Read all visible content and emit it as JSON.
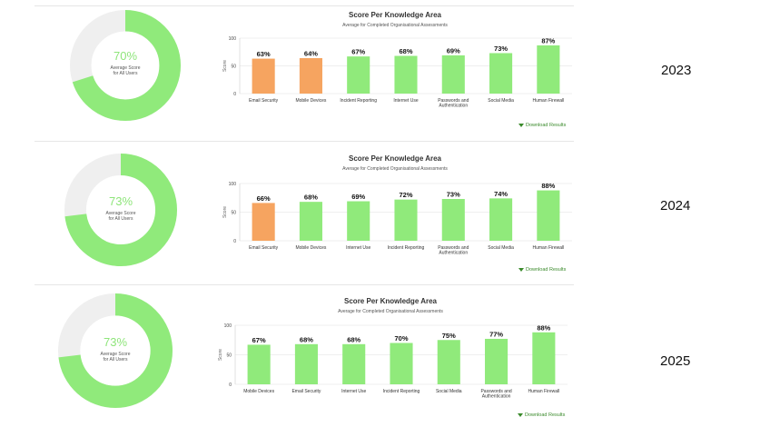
{
  "donut_sub_line1": "Average Score",
  "download_label": "Download Results",
  "colors": {
    "green": "#90ea7b",
    "orange": "#f6a460",
    "track": "#efefef"
  },
  "chart_data": [
    {
      "type": "bar",
      "year": "2023",
      "title": "Score Per Knowledge Area",
      "subtitle": "Average for Completed Organisational Assessments",
      "ylabel": "Score",
      "ylim": [
        0,
        100
      ],
      "yticks": [
        0,
        50,
        100
      ],
      "average_score": "70%",
      "average_sub_line2": "for All Users",
      "categories": [
        "Email Security",
        "Mobile Devices",
        "Incident Reporting",
        "Internet Use",
        "Passwords and|Authentication",
        "Social Media",
        "Human Firewall"
      ],
      "values": [
        63,
        64,
        67,
        68,
        69,
        73,
        87
      ],
      "value_labels": [
        "63%",
        "64%",
        "67%",
        "68%",
        "69%",
        "73%",
        "87%"
      ],
      "bar_colors": [
        "orange",
        "orange",
        "green",
        "green",
        "green",
        "green",
        "green"
      ]
    },
    {
      "type": "bar",
      "year": "2024",
      "title": "Score Per Knowledge Area",
      "subtitle": "Average for Completed Organisational Assessments",
      "ylabel": "Score",
      "ylim": [
        0,
        100
      ],
      "yticks": [
        0,
        50,
        100
      ],
      "average_score": "73%",
      "average_sub_line2": "for All Users",
      "categories": [
        "Email Security",
        "Mobile Devices",
        "Internet Use",
        "Incident Reporting",
        "Passwords and|Authentication",
        "Social Media",
        "Human Firewall"
      ],
      "values": [
        66,
        68,
        69,
        72,
        73,
        74,
        88
      ],
      "value_labels": [
        "66%",
        "68%",
        "69%",
        "72%",
        "73%",
        "74%",
        "88%"
      ],
      "bar_colors": [
        "orange",
        "green",
        "green",
        "green",
        "green",
        "green",
        "green"
      ]
    },
    {
      "type": "bar",
      "year": "2025",
      "title": "Score Per Knowledge Area",
      "subtitle": "Average for Completed Organisational Assessments",
      "ylabel": "Score",
      "ylim": [
        0,
        100
      ],
      "yticks": [
        0,
        50,
        100
      ],
      "average_score": "73%",
      "average_sub_line2": "for All Users",
      "categories": [
        "Mobile Devices",
        "Email Security",
        "Internet Use",
        "Incident Reporting",
        "Social Media",
        "Passwords and|Authentication",
        "Human Firewall"
      ],
      "values": [
        67,
        68,
        68,
        70,
        75,
        77,
        88
      ],
      "value_labels": [
        "67%",
        "68%",
        "68%",
        "70%",
        "75%",
        "77%",
        "88%"
      ],
      "bar_colors": [
        "green",
        "green",
        "green",
        "green",
        "green",
        "green",
        "green"
      ]
    }
  ]
}
